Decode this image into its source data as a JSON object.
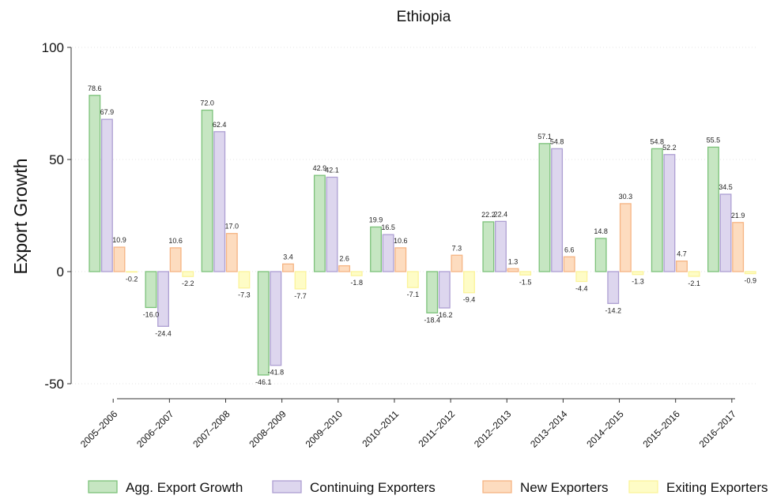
{
  "chart_data": {
    "type": "bar",
    "title": "Ethiopia",
    "xlabel": "",
    "ylabel": "Export Growth",
    "ylim": [
      -50,
      100
    ],
    "yticks": [
      -50,
      0,
      50,
      100
    ],
    "grid": true,
    "legend_position": "bottom",
    "categories": [
      "2005-2006",
      "2006-2007",
      "2007-2008",
      "2008-2009",
      "2009-2010",
      "2010-2011",
      "2011-2012",
      "2012-2013",
      "2013-2014",
      "2014-2015",
      "2015-2016",
      "2016-2017"
    ],
    "series": [
      {
        "name": "Agg. Export Growth",
        "fill": "#c6e6c2",
        "stroke": "#7cc27a",
        "values": [
          78.6,
          -16.0,
          72.0,
          -46.1,
          42.9,
          19.9,
          -18.4,
          22.2,
          57.1,
          14.8,
          54.8,
          55.5
        ],
        "labels": [
          "78.6",
          "-16.0",
          "72.0",
          "-46.1",
          "42.9",
          "19.9",
          "-18.4",
          "22.2",
          "57.1",
          "14.8",
          "54.8",
          "55.5"
        ]
      },
      {
        "name": "Continuing Exporters",
        "fill": "#ddd6ee",
        "stroke": "#ad9fd2",
        "values": [
          67.9,
          -24.4,
          62.4,
          -41.8,
          42.1,
          16.5,
          -16.2,
          22.4,
          54.8,
          -14.2,
          52.2,
          34.5
        ],
        "labels": [
          "67.9",
          "-24.4",
          "62.4",
          "-41.8",
          "42.1",
          "16.5",
          "-16.2",
          "22.4",
          "54.8",
          "-14.2",
          "52.2",
          "34.5"
        ]
      },
      {
        "name": "New Exporters",
        "fill": "#fddcbf",
        "stroke": "#f6b483",
        "values": [
          10.9,
          10.6,
          17.0,
          3.4,
          2.6,
          10.6,
          7.3,
          1.3,
          6.6,
          30.3,
          4.7,
          21.9
        ],
        "labels": [
          "10.9",
          "10.6",
          "17.0",
          "3.4",
          "2.6",
          "10.6",
          "7.3",
          "1.3",
          "6.6",
          "30.3",
          "4.7",
          "21.9"
        ]
      },
      {
        "name": "Exiting Exporters",
        "fill": "#fefcc6",
        "stroke": "#fbf39a",
        "values": [
          -0.2,
          -2.2,
          -7.3,
          -7.7,
          -1.8,
          -7.1,
          -9.4,
          -1.5,
          -4.4,
          -1.3,
          -2.1,
          -0.9
        ],
        "labels": [
          "-0.2",
          "-2.2",
          "-7.3",
          "-7.7",
          "-1.8",
          "-7.1",
          "-9.4",
          "-1.5",
          "-4.4",
          "-1.3",
          "-2.1",
          "-0.9"
        ]
      }
    ]
  }
}
